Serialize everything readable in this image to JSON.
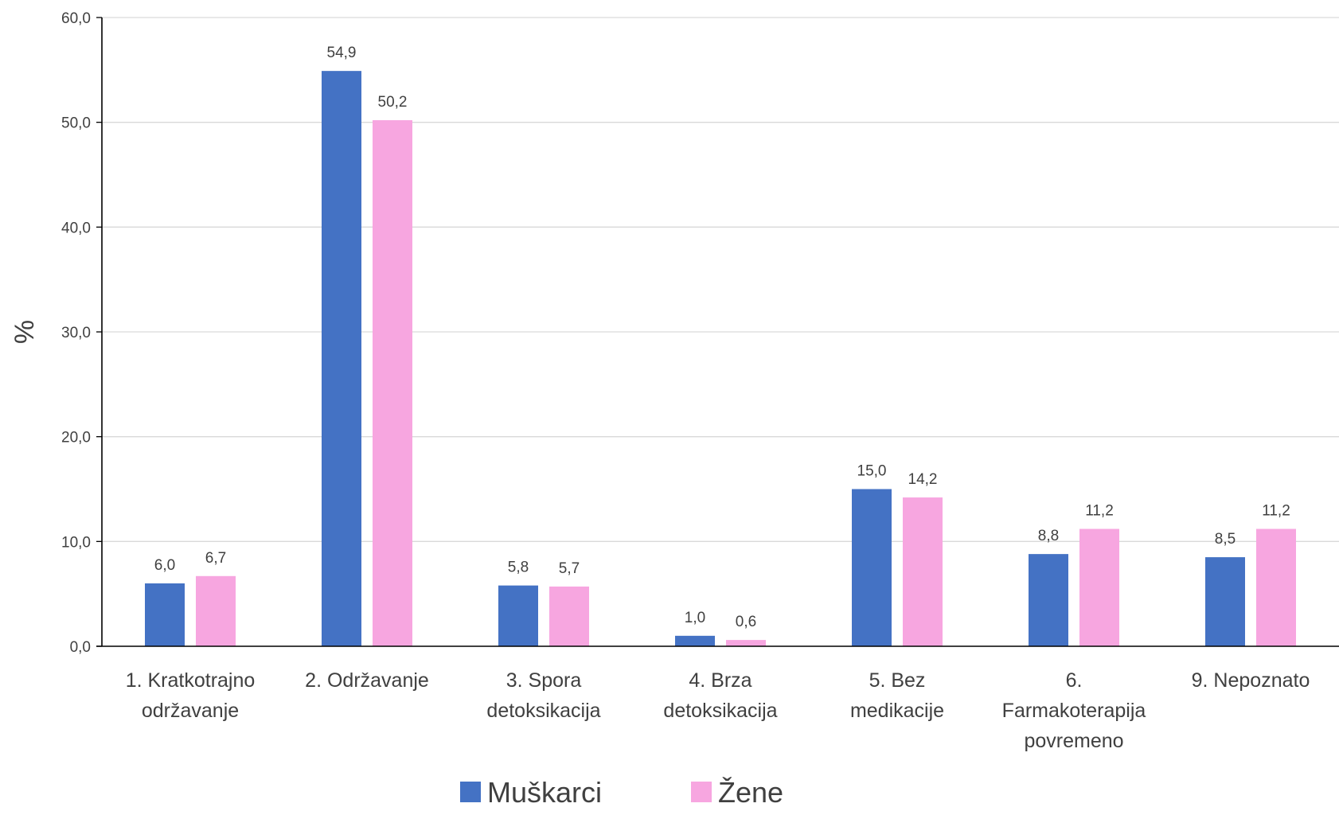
{
  "chart_data": {
    "type": "bar",
    "categories": [
      [
        "1. Kratkotrajno",
        "održavanje"
      ],
      [
        "2. Održavanje"
      ],
      [
        "3. Spora",
        "detoksikacija"
      ],
      [
        "4. Brza",
        "detoksikacija"
      ],
      [
        "5. Bez",
        "medikacije"
      ],
      [
        "6.",
        "Farmakoterapija",
        "povremeno"
      ],
      [
        "9. Nepoznato"
      ]
    ],
    "series": [
      {
        "name": "Muškarci",
        "color": "#4472C4",
        "values": [
          6.0,
          54.9,
          5.8,
          1.0,
          15.0,
          8.8,
          8.5
        ],
        "labels": [
          "6,0",
          "54,9",
          "5,8",
          "1,0",
          "15,0",
          "8,8",
          "8,5"
        ]
      },
      {
        "name": "Žene",
        "color": "#F7A6E0",
        "values": [
          6.7,
          50.2,
          5.7,
          0.6,
          14.2,
          11.2,
          11.2
        ],
        "labels": [
          "6,7",
          "50,2",
          "5,7",
          "0,6",
          "14,2",
          "11,2",
          "11,2"
        ]
      }
    ],
    "ylabel": "%",
    "ylim": [
      0,
      60
    ],
    "yticks": [
      0,
      10,
      20,
      30,
      40,
      50,
      60
    ],
    "ytick_labels": [
      "0,0",
      "10,0",
      "20,0",
      "30,0",
      "40,0",
      "50,0",
      "60,0"
    ],
    "grid": true,
    "legend_position": "bottom"
  }
}
